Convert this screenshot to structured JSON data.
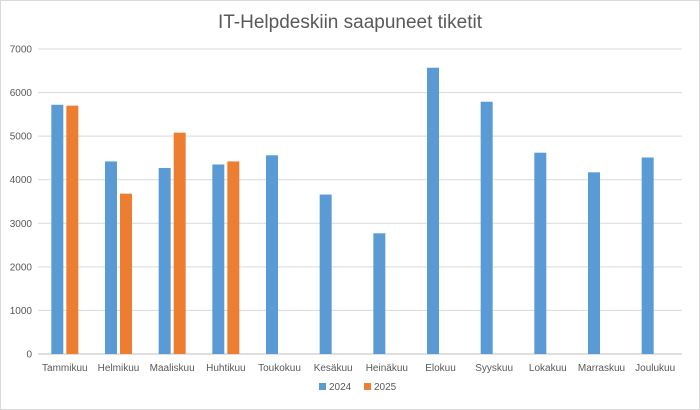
{
  "chart_data": {
    "type": "bar",
    "title": "IT-Helpdeskiin saapuneet tiketit",
    "xlabel": "",
    "ylabel": "",
    "categories": [
      "Tammikuu",
      "Helmikuu",
      "Maaliskuu",
      "Huhtikuu",
      "Toukokuu",
      "Kesäkuu",
      "Heinäkuu",
      "Elokuu",
      "Syyskuu",
      "Lokakuu",
      "Marraskuu",
      "Joulukuu"
    ],
    "series": [
      {
        "name": "2024",
        "color": "#5b9bd5",
        "values": [
          5720,
          4420,
          4270,
          4350,
          4560,
          3660,
          2770,
          6570,
          5790,
          4620,
          4170,
          4510
        ]
      },
      {
        "name": "2025",
        "color": "#ed7d31",
        "values": [
          5700,
          3680,
          5080,
          4420,
          null,
          null,
          null,
          null,
          null,
          null,
          null,
          null
        ]
      }
    ],
    "ylim": [
      0,
      7000
    ],
    "yticks": [
      "0",
      "1000",
      "2000",
      "3000",
      "4000",
      "5000",
      "6000",
      "7000"
    ],
    "grid": true,
    "legend_position": "bottom"
  }
}
